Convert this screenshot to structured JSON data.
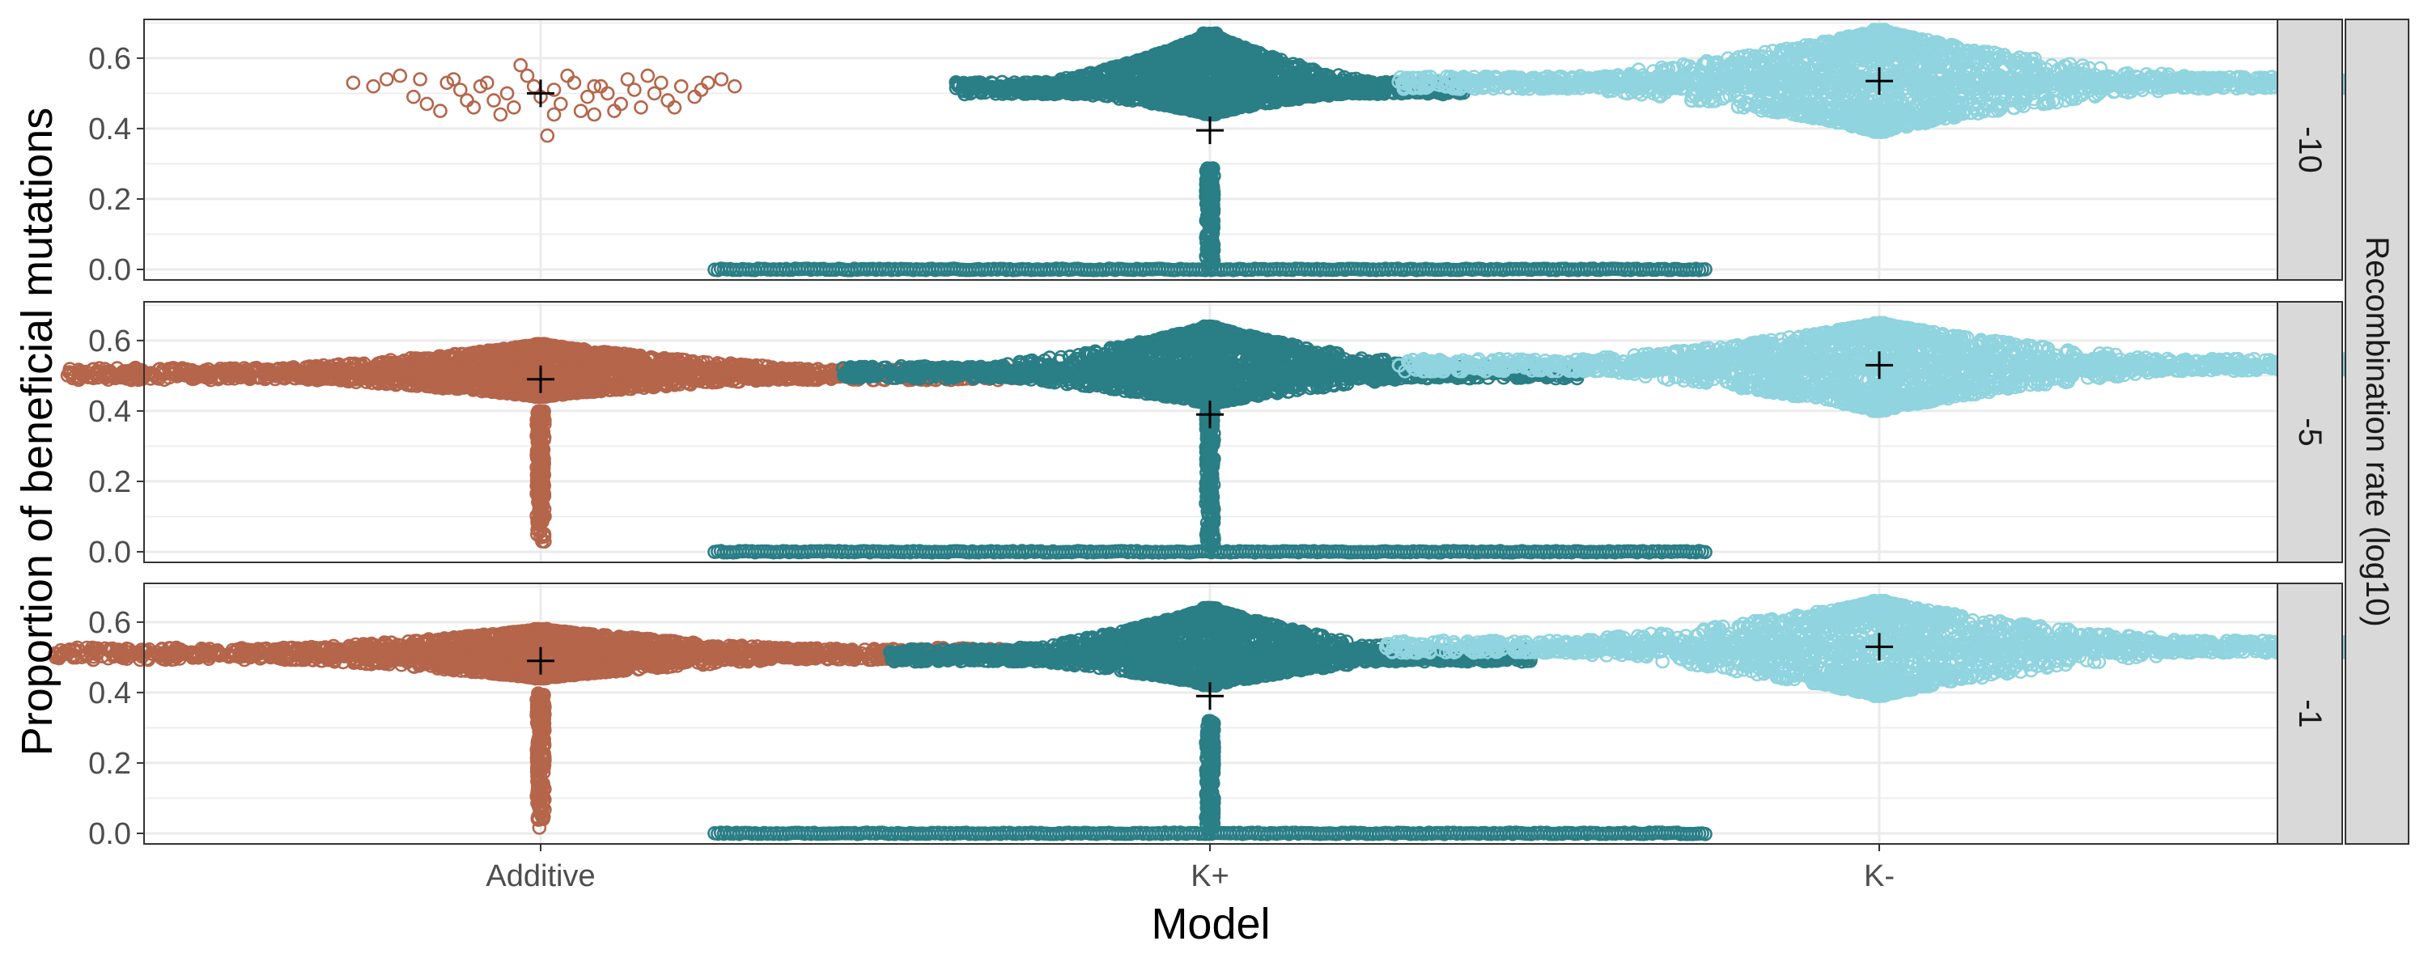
{
  "chart_data": {
    "type": "scatter",
    "subtype": "beeswarm-faceted",
    "xlabel": "Model",
    "ylabel": "Proportion of beneficial mutations",
    "facet_title": "Recombination rate (log10)",
    "categories": [
      "Additive",
      "K+",
      "K-"
    ],
    "yticks": [
      "0.0",
      "0.2",
      "0.4",
      "0.6"
    ],
    "ylim": [
      -0.03,
      0.71
    ],
    "grid": true,
    "colors": {
      "Additive": "#b5654a",
      "K+": "#2a7e86",
      "K-": "#8fd4de",
      "mean_marker": "#000000"
    },
    "panels": [
      {
        "facet_label": "-10",
        "groups": [
          {
            "model": "Additive",
            "mean": 0.5,
            "dense": false,
            "points": [
              [
                -0.28,
                0.53
              ],
              [
                -0.25,
                0.52
              ],
              [
                -0.23,
                0.54
              ],
              [
                -0.21,
                0.55
              ],
              [
                -0.18,
                0.54
              ],
              [
                -0.17,
                0.47
              ],
              [
                -0.15,
                0.45
              ],
              [
                -0.12,
                0.51
              ],
              [
                -0.11,
                0.48
              ],
              [
                -0.1,
                0.46
              ],
              [
                -0.09,
                0.52
              ],
              [
                -0.08,
                0.53
              ],
              [
                -0.06,
                0.44
              ],
              [
                -0.05,
                0.5
              ],
              [
                -0.04,
                0.46
              ],
              [
                -0.02,
                0.55
              ],
              [
                -0.01,
                0.52
              ],
              [
                0.0,
                0.49
              ],
              [
                0.01,
                0.38
              ],
              [
                0.02,
                0.51
              ],
              [
                0.03,
                0.47
              ],
              [
                0.04,
                0.55
              ],
              [
                0.05,
                0.53
              ],
              [
                0.06,
                0.45
              ],
              [
                0.07,
                0.49
              ],
              [
                0.08,
                0.44
              ],
              [
                0.09,
                0.52
              ],
              [
                0.1,
                0.5
              ],
              [
                0.12,
                0.47
              ],
              [
                0.13,
                0.54
              ],
              [
                0.14,
                0.51
              ],
              [
                0.15,
                0.46
              ],
              [
                0.16,
                0.55
              ],
              [
                0.18,
                0.53
              ],
              [
                0.19,
                0.48
              ],
              [
                0.21,
                0.52
              ],
              [
                0.23,
                0.49
              ],
              [
                0.25,
                0.53
              ],
              [
                0.27,
                0.54
              ],
              [
                0.29,
                0.52
              ],
              [
                -0.14,
                0.53
              ],
              [
                -0.07,
                0.48
              ],
              [
                -0.03,
                0.58
              ],
              [
                0.11,
                0.45
              ],
              [
                0.17,
                0.5
              ],
              [
                0.2,
                0.46
              ],
              [
                0.24,
                0.51
              ],
              [
                -0.19,
                0.49
              ],
              [
                0.02,
                0.44
              ],
              [
                -0.13,
                0.54
              ],
              [
                0.08,
                0.52
              ]
            ]
          },
          {
            "model": "K+",
            "mean": 0.395,
            "dense": true,
            "main_center": 0.515,
            "main_halfwidth": 0.38,
            "main_ymin": 0.44,
            "main_ymax": 0.67,
            "tail_min": 0.0,
            "tail_max": 0.29,
            "zero_halfwidth": 0.74
          },
          {
            "model": "K-",
            "mean": 0.535,
            "dense": true,
            "main_center": 0.53,
            "main_halfwidth": 0.72,
            "main_ymin": 0.39,
            "main_ymax": 0.68
          }
        ]
      },
      {
        "facet_label": "-5",
        "groups": [
          {
            "model": "Additive",
            "mean": 0.49,
            "dense": true,
            "main_center": 0.505,
            "main_halfwidth": 0.71,
            "main_ymin": 0.44,
            "main_ymax": 0.59,
            "tail_min": 0.02,
            "tail_max": 0.4
          },
          {
            "model": "K+",
            "mean": 0.39,
            "dense": true,
            "main_center": 0.51,
            "main_halfwidth": 0.55,
            "main_ymin": 0.42,
            "main_ymax": 0.64,
            "tail_min": 0.0,
            "tail_max": 0.42,
            "zero_halfwidth": 0.74
          },
          {
            "model": "K-",
            "mean": 0.53,
            "dense": true,
            "main_center": 0.53,
            "main_halfwidth": 0.72,
            "main_ymin": 0.4,
            "main_ymax": 0.65
          }
        ]
      },
      {
        "facet_label": "-1",
        "groups": [
          {
            "model": "Additive",
            "mean": 0.49,
            "dense": true,
            "main_center": 0.51,
            "main_halfwidth": 0.73,
            "main_ymin": 0.44,
            "main_ymax": 0.58,
            "tail_min": 0.01,
            "tail_max": 0.4
          },
          {
            "model": "K+",
            "mean": 0.39,
            "dense": true,
            "main_center": 0.505,
            "main_halfwidth": 0.48,
            "main_ymin": 0.42,
            "main_ymax": 0.64,
            "tail_min": 0.0,
            "tail_max": 0.32,
            "zero_halfwidth": 0.74
          },
          {
            "model": "K-",
            "mean": 0.53,
            "dense": true,
            "main_center": 0.53,
            "main_halfwidth": 0.74,
            "main_ymin": 0.39,
            "main_ymax": 0.66
          }
        ]
      }
    ]
  }
}
